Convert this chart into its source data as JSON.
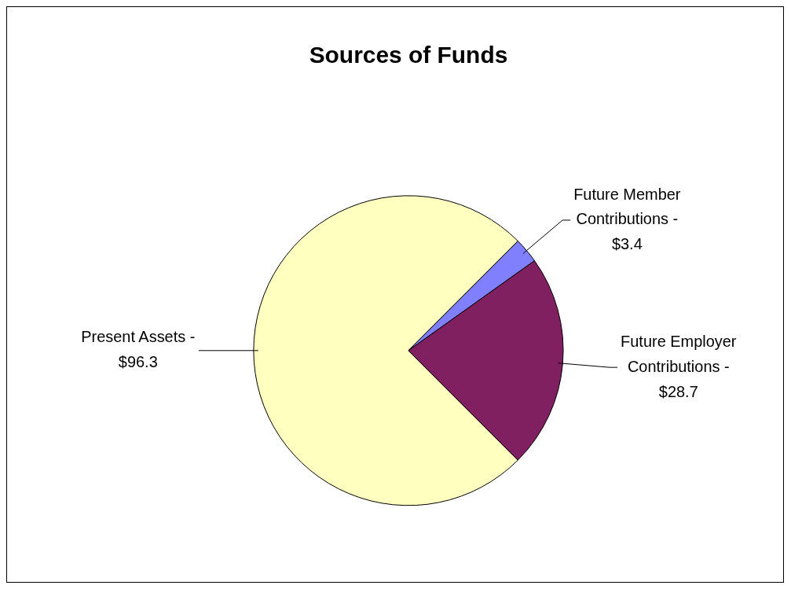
{
  "chart_data": {
    "type": "pie",
    "title": "Sources of Funds",
    "categories": [
      "Present Assets -",
      "Future Member Contributions -",
      "Future Employer Contributions -"
    ],
    "values": [
      96.3,
      3.4,
      28.7
    ],
    "value_labels": [
      "$96.3",
      "$3.4",
      "$28.7"
    ],
    "colors": [
      "#ffffc0",
      "#8080ff",
      "#802060"
    ],
    "legend": false
  }
}
